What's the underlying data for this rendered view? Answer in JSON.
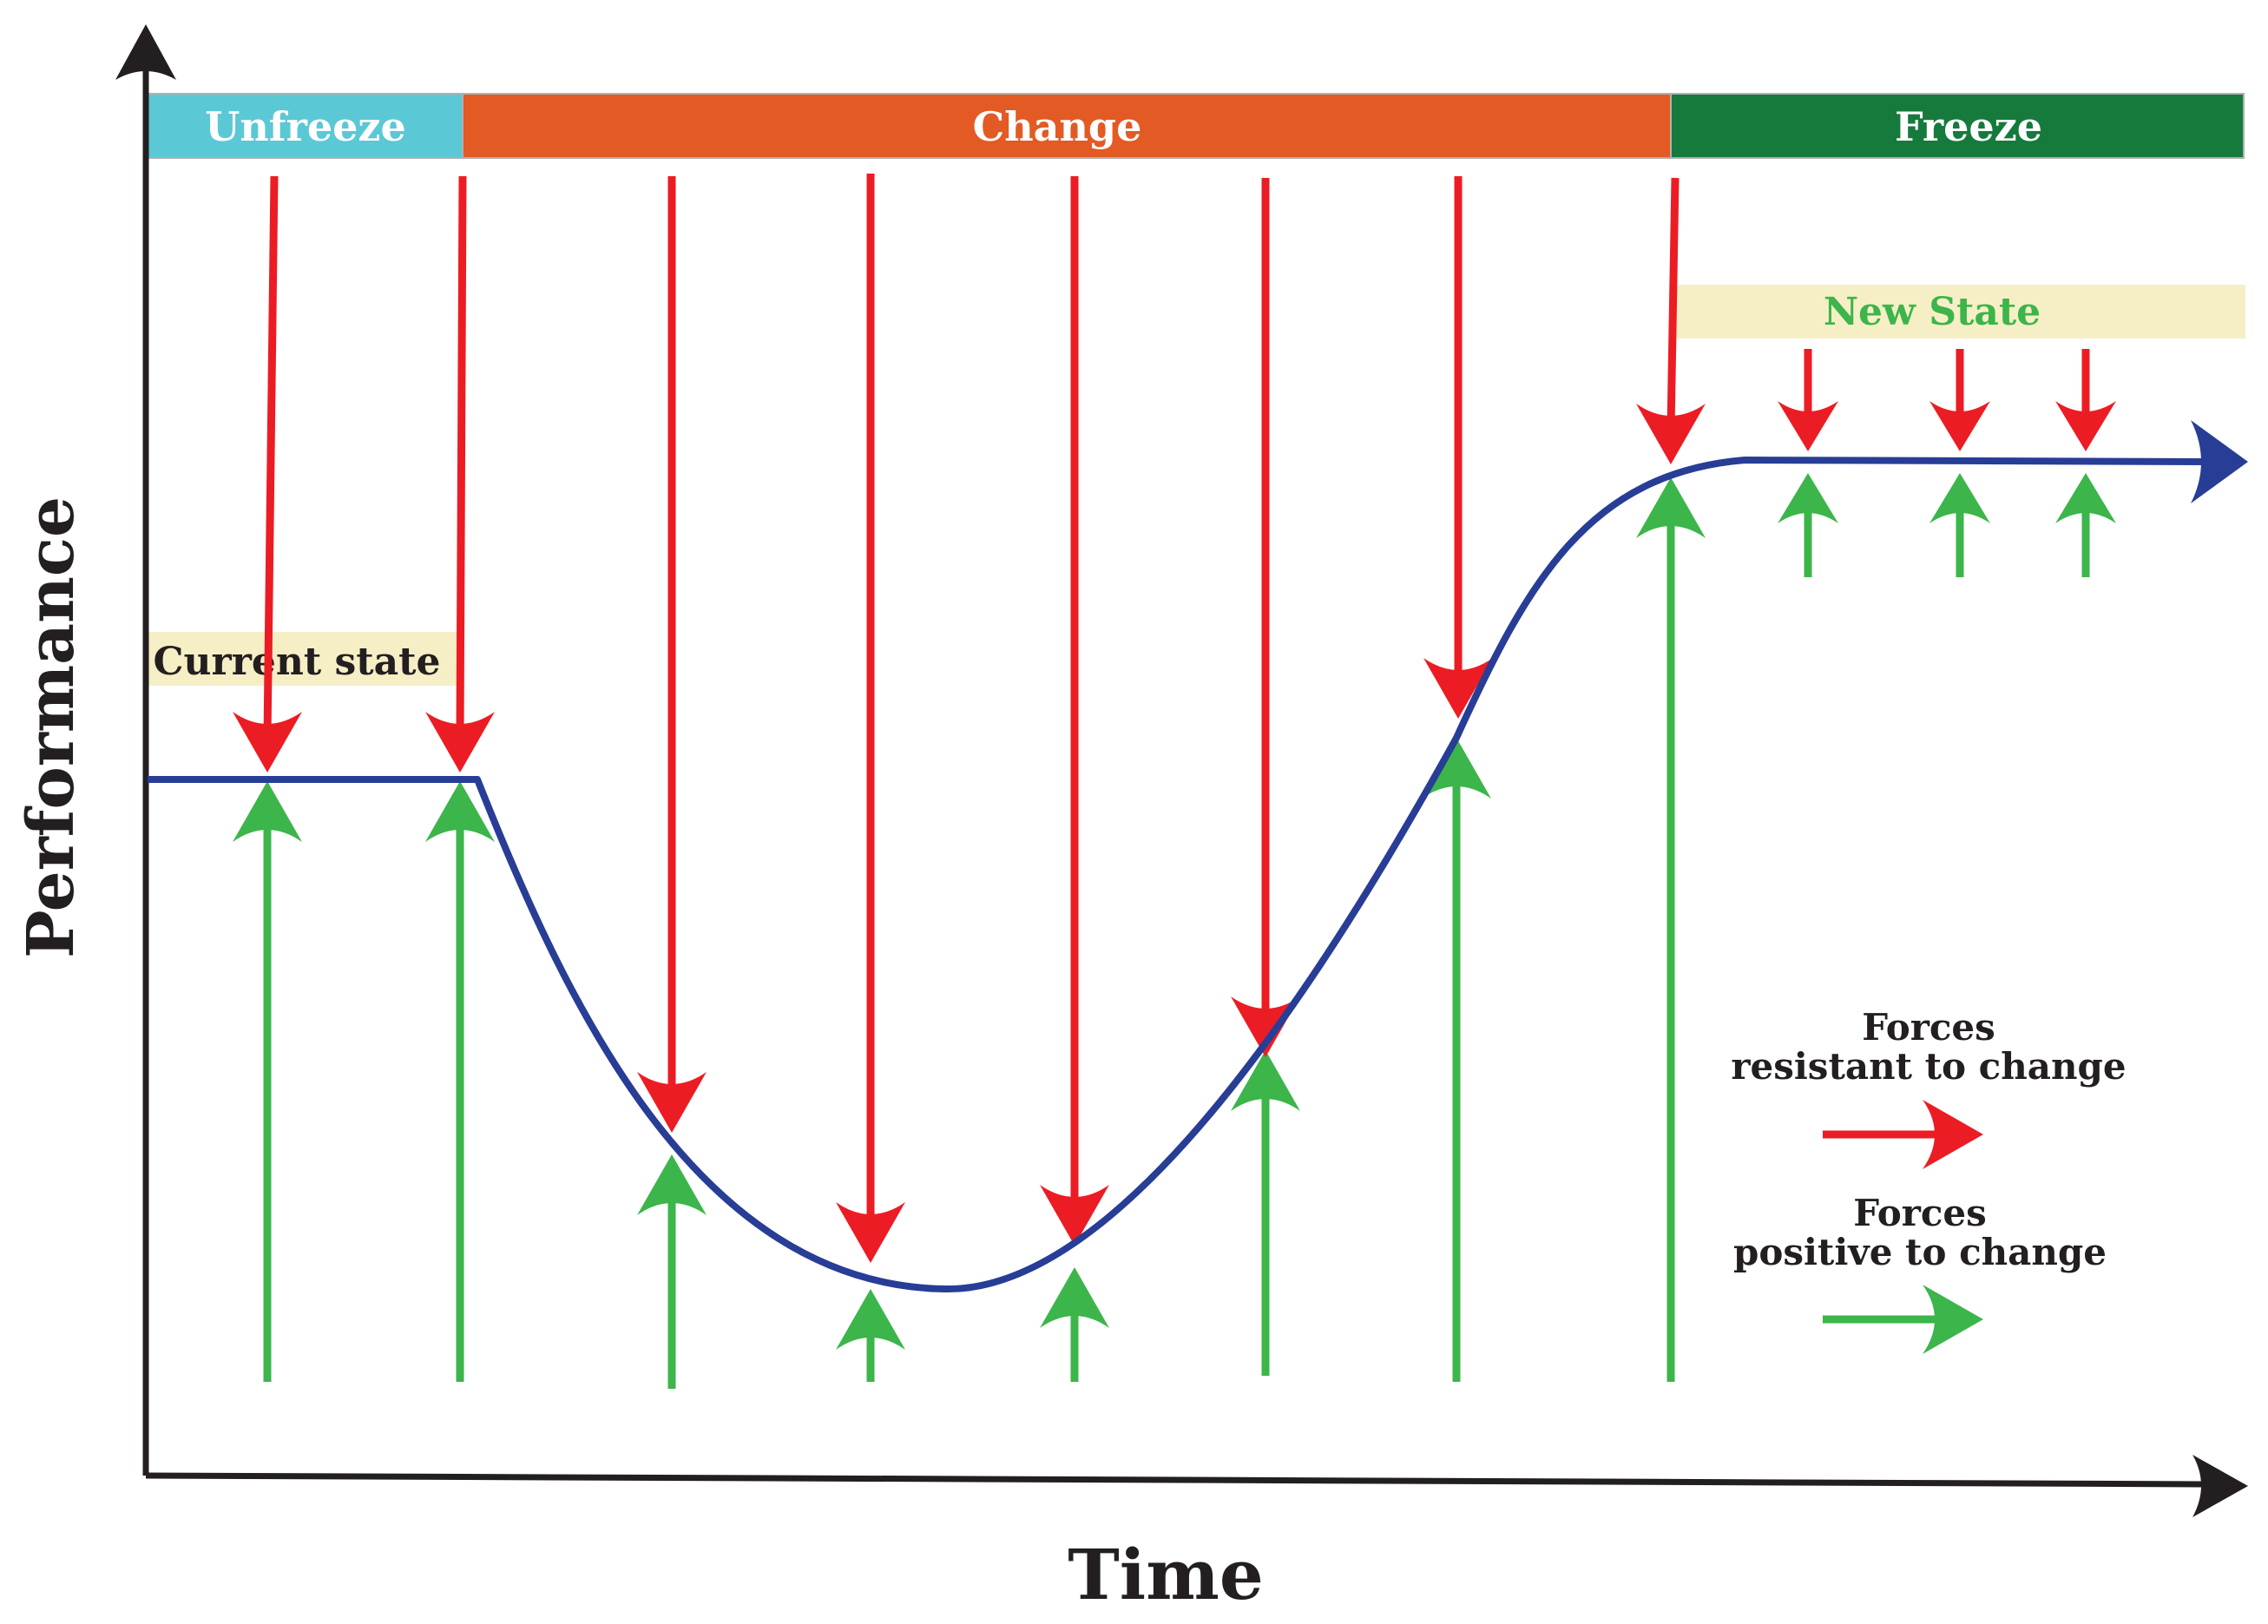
{
  "phases": [
    {
      "label": "Unfreeze",
      "color": "#5bc8d6"
    },
    {
      "label": "Change",
      "color": "#e35a24"
    },
    {
      "label": "Freeze",
      "color": "#157a3c"
    }
  ],
  "states": {
    "current": {
      "label": "Current state",
      "text_color": "#231f20",
      "bg": "#f6efc6"
    },
    "new": {
      "label": "New State",
      "text_color": "#3cb54a",
      "bg": "#f6efc6"
    }
  },
  "axes": {
    "y_title": "Performance",
    "x_title": "Time"
  },
  "legend": {
    "resistant": {
      "line1": "Forces",
      "line2": "resistant to change"
    },
    "positive": {
      "line1": "Forces",
      "line2": "positive to change"
    }
  },
  "colors": {
    "curve": "#283d96",
    "resistant_force": "#ec1c24",
    "positive_force": "#3cb54a",
    "axis": "#231f20"
  }
}
